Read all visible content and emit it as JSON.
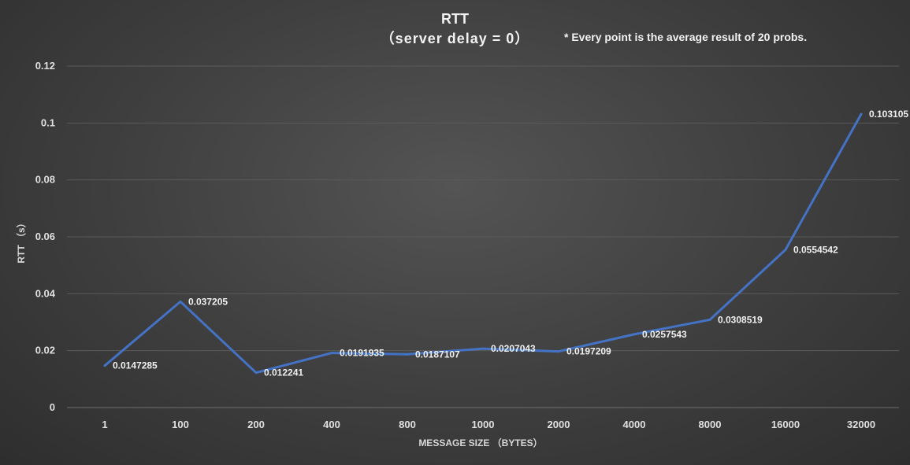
{
  "chart_data": {
    "type": "line",
    "title": "RTT",
    "subtitle": "（server delay = 0）",
    "annotation": "* Every point is the average result of 20 probs.",
    "xlabel": "MESSAGE SIZE （BYTES）",
    "ylabel": "RTT （s）",
    "categories": [
      "1",
      "100",
      "200",
      "400",
      "800",
      "1000",
      "2000",
      "4000",
      "8000",
      "16000",
      "32000"
    ],
    "series": [
      {
        "values": [
          0.0147285,
          0.037205,
          0.012241,
          0.0191935,
          0.0187107,
          0.0207043,
          0.0197209,
          0.0257543,
          0.0308519,
          0.0554542,
          0.103105
        ],
        "labels": [
          "0.0147285",
          "0.037205",
          "0.012241",
          "0.0191935",
          "0.0187107",
          "0.0207043",
          "0.0197209",
          "0.0257543",
          "0.0308519",
          "0.0554542",
          "0.103105"
        ],
        "color": "#4472c4"
      }
    ],
    "ylim": [
      0,
      0.12
    ],
    "yticks": [
      "0",
      "0.02",
      "0.04",
      "0.06",
      "0.08",
      "0.1",
      "0.12"
    ],
    "grid": true,
    "legend": "none"
  }
}
